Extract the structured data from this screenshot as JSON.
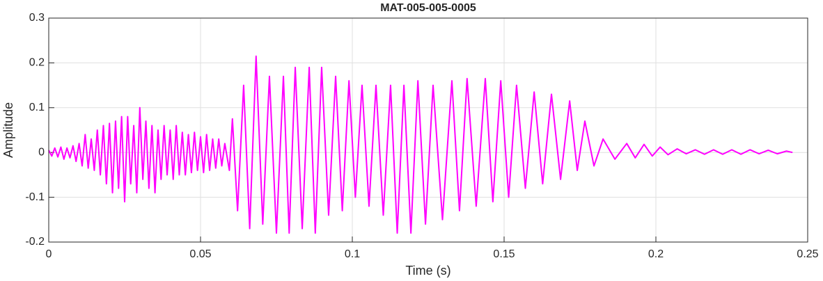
{
  "chart_data": {
    "type": "line",
    "title": "MAT-005-005-0005",
    "xlabel": "Time (s)",
    "ylabel": "Amplitude",
    "color": "#ff00ff",
    "grid": true,
    "xlim": [
      0,
      0.25
    ],
    "xticks": [
      0,
      0.05,
      0.1,
      0.15,
      0.2,
      0.25
    ],
    "ylim": [
      -0.2,
      0.3
    ],
    "yticks": [
      -0.2,
      -0.1,
      0,
      0.1,
      0.2,
      0.3
    ],
    "x": [
      0,
      0.001,
      0.002,
      0.003,
      0.004,
      0.005,
      0.006,
      0.007,
      0.008,
      0.009,
      0.01,
      0.011,
      0.012,
      0.013,
      0.014,
      0.015,
      0.016,
      0.017,
      0.018,
      0.019,
      0.02,
      0.021,
      0.022,
      0.023,
      0.024,
      0.025,
      0.026,
      0.027,
      0.028,
      0.029,
      0.03,
      0.031,
      0.032,
      0.033,
      0.034,
      0.035,
      0.036,
      0.037,
      0.038,
      0.039,
      0.04,
      0.041,
      0.042,
      0.043,
      0.044,
      0.045,
      0.046,
      0.047,
      0.048,
      0.049,
      0.05,
      0.051,
      0.052,
      0.053,
      0.054,
      0.055,
      0.056,
      0.057,
      0.058,
      0.0595,
      0.0605,
      0.0622,
      0.0642,
      0.0662,
      0.0683,
      0.0705,
      0.0727,
      0.075,
      0.0773,
      0.0792,
      0.0812,
      0.0835,
      0.0858,
      0.0878,
      0.0899,
      0.0922,
      0.0945,
      0.0967,
      0.0989,
      0.101,
      0.1032,
      0.1055,
      0.1078,
      0.1102,
      0.1126,
      0.1148,
      0.117,
      0.1193,
      0.1216,
      0.1241,
      0.1266,
      0.1297,
      0.1328,
      0.1353,
      0.1378,
      0.1408,
      0.1438,
      0.1463,
      0.1489,
      0.1515,
      0.1541,
      0.157,
      0.1599,
      0.1627,
      0.1656,
      0.1686,
      0.1716,
      0.1741,
      0.1766,
      0.1796,
      0.1826,
      0.1865,
      0.1904,
      0.1932,
      0.1961,
      0.1988,
      0.2014,
      0.204,
      0.207,
      0.21,
      0.213,
      0.216,
      0.219,
      0.222,
      0.225,
      0.228,
      0.231,
      0.234,
      0.237,
      0.24,
      0.243,
      0.245
    ],
    "values": [
      0.005,
      -0.008,
      0.01,
      -0.01,
      0.012,
      -0.015,
      0.01,
      -0.012,
      0.015,
      -0.02,
      0.02,
      -0.03,
      0.04,
      -0.035,
      0.03,
      -0.04,
      0.05,
      -0.05,
      0.06,
      -0.07,
      0.065,
      -0.09,
      0.07,
      -0.08,
      0.08,
      -0.11,
      0.08,
      -0.07,
      0.06,
      -0.09,
      0.1,
      -0.06,
      0.07,
      -0.08,
      0.06,
      -0.09,
      0.05,
      -0.06,
      0.06,
      -0.05,
      0.05,
      -0.06,
      0.06,
      -0.05,
      0.045,
      -0.05,
      0.04,
      -0.045,
      0.045,
      -0.04,
      0.035,
      -0.045,
      0.04,
      -0.04,
      0.03,
      -0.035,
      0.03,
      -0.03,
      0.02,
      -0.04,
      0.075,
      -0.13,
      0.15,
      -0.17,
      0.215,
      -0.16,
      0.17,
      -0.18,
      0.17,
      -0.18,
      0.19,
      -0.17,
      0.19,
      -0.18,
      0.19,
      -0.14,
      0.17,
      -0.13,
      0.16,
      -0.1,
      0.15,
      -0.12,
      0.15,
      -0.14,
      0.15,
      -0.18,
      0.15,
      -0.18,
      0.16,
      -0.16,
      0.15,
      -0.15,
      0.16,
      -0.13,
      0.165,
      -0.12,
      0.165,
      -0.11,
      0.16,
      -0.1,
      0.15,
      -0.08,
      0.135,
      -0.07,
      0.13,
      -0.06,
      0.115,
      -0.04,
      0.07,
      -0.03,
      0.03,
      -0.015,
      0.02,
      -0.012,
      0.018,
      -0.008,
      0.012,
      -0.005,
      0.008,
      -0.003,
      0.006,
      -0.004,
      0.006,
      -0.004,
      0.006,
      -0.004,
      0.006,
      -0.003,
      0.005,
      -0.003,
      0.003,
      0
    ]
  }
}
